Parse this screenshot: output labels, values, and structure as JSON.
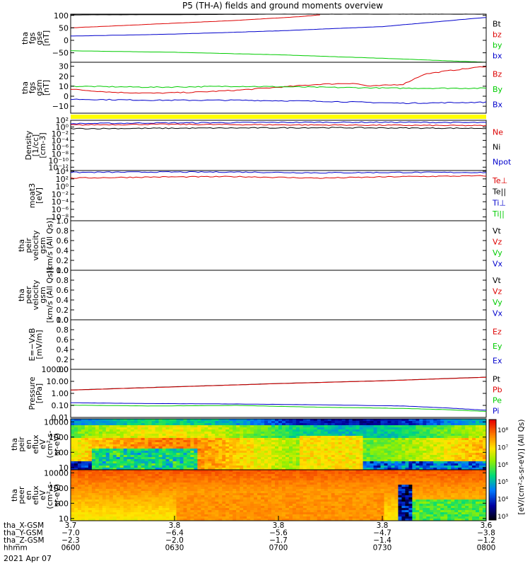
{
  "title": "P5 (TH-A) fields and ground moments overview",
  "date_label": "2021 Apr 07",
  "colors": {
    "black": "#000000",
    "red": "#dd0000",
    "green": "#00cc00",
    "blue": "#0000cc",
    "yellow": "#ffff00"
  },
  "panels": [
    {
      "id": "fgs-gse",
      "ylabel": [
        "tha",
        "fgs",
        "gse",
        "[nT]"
      ],
      "ticks": [
        "100",
        "50",
        "0",
        "−50"
      ],
      "legend": [
        {
          "text": "Bt",
          "color": "black"
        },
        {
          "text": "bz",
          "color": "red"
        },
        {
          "text": "by",
          "color": "green"
        },
        {
          "text": "bx",
          "color": "blue"
        }
      ],
      "series": [
        {
          "name": "Bt",
          "color": "black",
          "x": [
            0,
            0.25,
            0.5,
            0.75,
            1
          ],
          "y": [
            102,
            103,
            105,
            105,
            105
          ]
        },
        {
          "name": "bz",
          "color": "red",
          "x": [
            0,
            0.2,
            0.4,
            0.55,
            0.6
          ],
          "y": [
            50,
            65,
            80,
            95,
            102
          ]
        },
        {
          "name": "by",
          "color": "green",
          "x": [
            0,
            0.25,
            0.5,
            0.75,
            1
          ],
          "y": [
            -42,
            -48,
            -58,
            -72,
            -88
          ]
        },
        {
          "name": "bx",
          "color": "blue",
          "x": [
            0,
            0.25,
            0.5,
            0.75,
            1
          ],
          "y": [
            17,
            25,
            38,
            55,
            92
          ]
        }
      ]
    },
    {
      "id": "fgs-gsm",
      "ylabel": [
        "tha",
        "fgs",
        "gsm",
        "[nT]"
      ],
      "ticks": [
        "30",
        "20",
        "10",
        "0",
        "−10"
      ],
      "legend": [
        {
          "text": "Bz",
          "color": "red"
        },
        {
          "text": "By",
          "color": "green"
        },
        {
          "text": "Bx",
          "color": "blue"
        }
      ],
      "series": [
        {
          "name": "Bz",
          "color": "red",
          "x": [
            0,
            0.1,
            0.2,
            0.3,
            0.4,
            0.5,
            0.6,
            0.68,
            0.72,
            0.8,
            0.85,
            0.9,
            1
          ],
          "y": [
            7,
            4,
            3,
            4,
            6,
            9,
            12,
            13,
            10,
            12,
            22,
            25,
            30
          ]
        },
        {
          "name": "By",
          "color": "green",
          "x": [
            0,
            0.2,
            0.4,
            0.6,
            0.8,
            1
          ],
          "y": [
            10,
            9,
            10,
            9,
            8,
            8
          ]
        },
        {
          "name": "Bx",
          "color": "blue",
          "x": [
            0,
            0.2,
            0.4,
            0.6,
            0.8,
            1
          ],
          "y": [
            -3,
            -4,
            -4,
            -5,
            -7,
            -6
          ]
        }
      ]
    },
    {
      "id": "density",
      "ylabel": [
        "Density",
        "[1/cc]",
        "[cm-3]"
      ],
      "ticks": [
        "10²",
        "10⁰",
        "10⁻²",
        "10⁻⁴",
        "10⁻⁶",
        "10⁻⁸",
        "10⁻¹⁰",
        "10⁻¹²"
      ],
      "legend": [
        {
          "text": "Ne",
          "color": "red"
        },
        {
          "text": "Ni",
          "color": "black"
        },
        {
          "text": "Npot",
          "color": "blue"
        }
      ],
      "series": [
        {
          "name": "Npot",
          "color": "blue",
          "x": [
            0,
            0.2,
            0.4,
            0.6,
            0.8,
            1
          ],
          "y": [
            1.0,
            1.2,
            1.3,
            1.4,
            1.4,
            1.3
          ]
        },
        {
          "name": "Ne",
          "color": "red",
          "x": [
            0,
            0.2,
            0.4,
            0.6,
            0.8,
            1
          ],
          "y": [
            0.6,
            0.8,
            0.7,
            0.6,
            0.5,
            0.4
          ]
        },
        {
          "name": "Ni",
          "color": "black",
          "x": [
            0,
            0.2,
            0.4,
            0.6,
            0.8,
            1
          ],
          "y": [
            -0.5,
            -0.4,
            -0.3,
            -0.2,
            -0.3,
            -0.4
          ]
        }
      ]
    },
    {
      "id": "moat3",
      "ylabel": [
        "moat3",
        "[eV]"
      ],
      "ticks": [
        "10⁴",
        "10²",
        "10⁰",
        "10⁻²",
        "10⁻⁴",
        "10⁻⁶",
        "10⁻⁸"
      ],
      "legend": [
        {
          "text": "Te⊥",
          "color": "red"
        },
        {
          "text": "Te||",
          "color": "black"
        },
        {
          "text": "Ti⊥",
          "color": "blue"
        },
        {
          "text": "Ti||",
          "color": "green"
        }
      ],
      "series": [
        {
          "name": "Ti",
          "color": "blue",
          "x": [
            0,
            0.2,
            0.4,
            0.6,
            0.8,
            1
          ],
          "y": [
            3.7,
            3.8,
            3.8,
            3.6,
            3.7,
            3.7
          ]
        },
        {
          "name": "Te",
          "color": "red",
          "x": [
            0,
            0.2,
            0.4,
            0.6,
            0.8,
            1
          ],
          "y": [
            2.2,
            2.5,
            2.6,
            2.2,
            2.6,
            2.8
          ]
        }
      ]
    },
    {
      "id": "peir-velocity",
      "ylabel": [
        "tha",
        "peir",
        "velocity",
        "gsm",
        "[km/s (All Qs)]"
      ],
      "ticks": [
        "1.0",
        "0.8",
        "0.6",
        "0.4",
        "0.2",
        "0.0"
      ],
      "legend": [
        {
          "text": "Vt",
          "color": "black"
        },
        {
          "text": "Vz",
          "color": "red"
        },
        {
          "text": "Vy",
          "color": "green"
        },
        {
          "text": "Vx",
          "color": "blue"
        }
      ],
      "series": []
    },
    {
      "id": "peer-velocity",
      "ylabel": [
        "tha",
        "peer",
        "velocity",
        "gsm",
        "[km/s (All Qs)]"
      ],
      "ticks": [
        "1.0",
        "0.8",
        "0.6",
        "0.4",
        "0.2",
        "0.0"
      ],
      "legend": [
        {
          "text": "Vt",
          "color": "black"
        },
        {
          "text": "Vz",
          "color": "red"
        },
        {
          "text": "Vy",
          "color": "green"
        },
        {
          "text": "Vx",
          "color": "blue"
        }
      ],
      "series": []
    },
    {
      "id": "efield",
      "ylabel": [
        "E=−VxB",
        "[mV/m]"
      ],
      "ticks": [
        "1.0",
        "0.8",
        "0.6",
        "0.4",
        "0.2",
        "0.0"
      ],
      "legend": [
        {
          "text": "Ez",
          "color": "red"
        },
        {
          "text": "Ey",
          "color": "green"
        },
        {
          "text": "Ex",
          "color": "blue"
        }
      ],
      "series": []
    },
    {
      "id": "pressure",
      "ylabel": [
        "Pressure",
        "[nPa]"
      ],
      "ticks": [
        "100.00",
        "10.00",
        "1.00",
        "0.10",
        "0.01"
      ],
      "legend": [
        {
          "text": "Pt",
          "color": "black"
        },
        {
          "text": "Pb",
          "color": "red"
        },
        {
          "text": "Pe",
          "color": "green"
        },
        {
          "text": "Pi",
          "color": "blue"
        }
      ],
      "series": [
        {
          "name": "Pt",
          "color": "black",
          "x": [
            0,
            0.25,
            0.5,
            0.75,
            1
          ],
          "y": [
            0.28,
            0.55,
            0.82,
            1.05,
            1.35
          ]
        },
        {
          "name": "Pb",
          "color": "red",
          "x": [
            0,
            0.25,
            0.5,
            0.75,
            1
          ],
          "y": [
            0.27,
            0.54,
            0.81,
            1.04,
            1.34
          ]
        },
        {
          "name": "Pi",
          "color": "blue",
          "x": [
            0,
            0.2,
            0.4,
            0.6,
            0.8,
            0.9,
            1
          ],
          "y": [
            -0.78,
            -0.85,
            -0.88,
            -0.95,
            -1.05,
            -1.2,
            -1.4
          ]
        },
        {
          "name": "Pe",
          "color": "green",
          "x": [
            0,
            0.2,
            0.4,
            0.6,
            0.8,
            0.9,
            1
          ],
          "y": [
            -0.98,
            -1.05,
            -1.0,
            -1.15,
            -1.25,
            -1.35,
            -1.5
          ]
        }
      ]
    },
    {
      "id": "peir-spec",
      "ylabel": [
        "tha",
        "peir",
        "en",
        "eflux",
        "eV",
        "(cm²-s-",
        "sr-eV)"
      ],
      "ticks": [
        "10000",
        "1000",
        "100",
        "10"
      ]
    },
    {
      "id": "peer-spec",
      "ylabel": [
        "tha",
        "peer",
        "en",
        "eflux",
        "eV",
        "(cm²-s-",
        "sr-eV)"
      ],
      "ticks": [
        "10000",
        "1000",
        "100",
        "10"
      ]
    }
  ],
  "colorbar": {
    "label": "[eV/(cm²-s-sr-eV)] (All Qs)",
    "ticks": [
      "10⁸",
      "10⁷",
      "10⁶",
      "10⁵",
      "10⁴",
      "10³"
    ]
  },
  "xaxis": {
    "rows": [
      {
        "label": "tha_X-GSM",
        "values": [
          "3.7",
          "3.8",
          "3.8",
          "3.8",
          "3.6"
        ]
      },
      {
        "label": "tha_Y-GSM",
        "values": [
          "−7.0",
          "−6.4",
          "−5.6",
          "−4.7",
          "−3.8"
        ]
      },
      {
        "label": "tha_Z-GSM",
        "values": [
          "−2.3",
          "−2.0",
          "−1.7",
          "−1.4",
          "−1.2"
        ]
      },
      {
        "label": "hhmm",
        "values": [
          "0600",
          "0630",
          "0700",
          "0730",
          "0800"
        ]
      }
    ]
  }
}
